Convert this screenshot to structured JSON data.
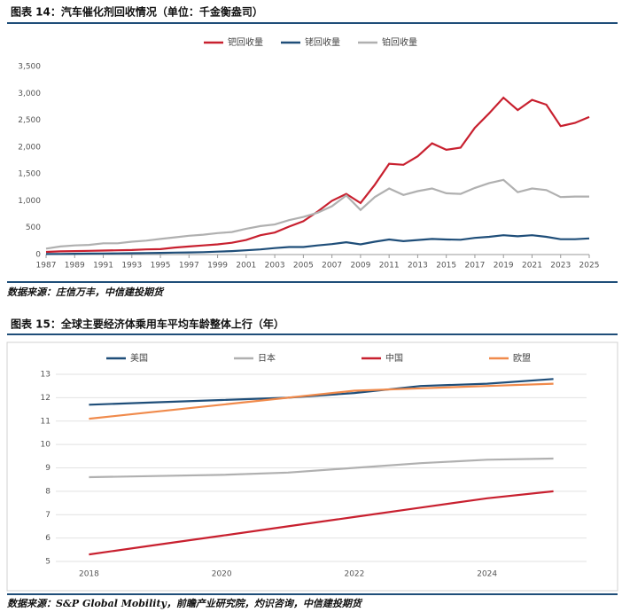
{
  "chart_data": [
    {
      "type": "line",
      "title": "图表 14：汽车催化剂回收情况（单位：千金衡盎司）",
      "source": "数据来源：庄信万丰，中信建投期货",
      "x": [
        1987,
        1988,
        1989,
        1990,
        1991,
        1992,
        1993,
        1994,
        1995,
        1996,
        1997,
        1998,
        1999,
        2000,
        2001,
        2002,
        2003,
        2004,
        2005,
        2006,
        2007,
        2008,
        2009,
        2010,
        2011,
        2012,
        2013,
        2014,
        2015,
        2016,
        2017,
        2018,
        2019,
        2020,
        2021,
        2022,
        2023,
        2024,
        2025
      ],
      "series": [
        {
          "name": "钯回收量",
          "color": "#c8202f",
          "values": [
            50,
            60,
            65,
            70,
            75,
            80,
            85,
            95,
            100,
            130,
            150,
            170,
            190,
            220,
            270,
            360,
            410,
            520,
            620,
            800,
            1000,
            1130,
            960,
            1300,
            1690,
            1670,
            1830,
            2070,
            1950,
            1990,
            2360,
            2630,
            2920,
            2690,
            2880,
            2790,
            2390,
            2450,
            2560
          ]
        },
        {
          "name": "铑回收量",
          "color": "#1f4e79",
          "values": [
            10,
            12,
            15,
            18,
            20,
            22,
            25,
            28,
            32,
            36,
            40,
            45,
            55,
            65,
            80,
            95,
            120,
            140,
            140,
            170,
            195,
            230,
            190,
            240,
            280,
            250,
            270,
            290,
            280,
            275,
            310,
            330,
            360,
            340,
            360,
            330,
            285,
            285,
            300
          ]
        },
        {
          "name": "铂回收量",
          "color": "#b0b0b0",
          "values": [
            110,
            150,
            170,
            180,
            210,
            210,
            240,
            260,
            290,
            320,
            350,
            370,
            400,
            420,
            480,
            530,
            560,
            640,
            700,
            780,
            900,
            1100,
            830,
            1070,
            1230,
            1110,
            1180,
            1230,
            1140,
            1130,
            1240,
            1330,
            1390,
            1160,
            1230,
            1200,
            1070,
            1080,
            1080
          ]
        }
      ],
      "xlim": [
        1987,
        2025
      ],
      "xticks": [
        1987,
        1989,
        1991,
        1993,
        1995,
        1997,
        1999,
        2001,
        2003,
        2005,
        2007,
        2009,
        2011,
        2013,
        2015,
        2017,
        2019,
        2021,
        2023,
        2025
      ],
      "ylim": [
        0,
        3500
      ],
      "yticks": [
        0,
        500,
        {
          "value": 1000,
          "label": "1,000"
        },
        {
          "value": 1500,
          "label": "1,500"
        },
        {
          "value": 2000,
          "label": "2,000"
        },
        {
          "value": 2500,
          "label": "2,500"
        },
        {
          "value": 3000,
          "label": "3,000"
        },
        {
          "value": 3500,
          "label": "3,500"
        }
      ],
      "grid": false
    },
    {
      "type": "line",
      "title": "图表 15：全球主要经济体乘用车平均车龄整体上行（年）",
      "source": "数据来源：S&P Global Mobility，前瞻产业研究院，灼识咨询，中信建投期货",
      "x": [
        2018,
        2019,
        2020,
        2021,
        2022,
        2023,
        2024,
        2025
      ],
      "series": [
        {
          "name": "美国",
          "color": "#1f4e79",
          "values": [
            11.7,
            11.8,
            11.9,
            12.0,
            12.2,
            12.5,
            12.6,
            12.8
          ]
        },
        {
          "name": "日本",
          "color": "#b0b0b0",
          "values": [
            8.6,
            8.65,
            8.7,
            8.8,
            9.0,
            9.2,
            9.35,
            9.4
          ]
        },
        {
          "name": "中国",
          "color": "#c8202f",
          "values": [
            5.3,
            5.7,
            6.1,
            6.5,
            6.9,
            7.3,
            7.7,
            8.0
          ]
        },
        {
          "name": "欧盟",
          "color": "#f08a4b",
          "values": [
            11.1,
            11.4,
            11.7,
            12.0,
            12.3,
            12.4,
            12.5,
            12.6
          ]
        }
      ],
      "xlim": [
        2017.5,
        2025.5
      ],
      "xticks": [
        2018,
        2020,
        2022,
        2024
      ],
      "ylim": [
        5,
        13
      ],
      "yticks": [
        5,
        6,
        7,
        8,
        9,
        10,
        11,
        12,
        13
      ],
      "grid": true
    }
  ]
}
